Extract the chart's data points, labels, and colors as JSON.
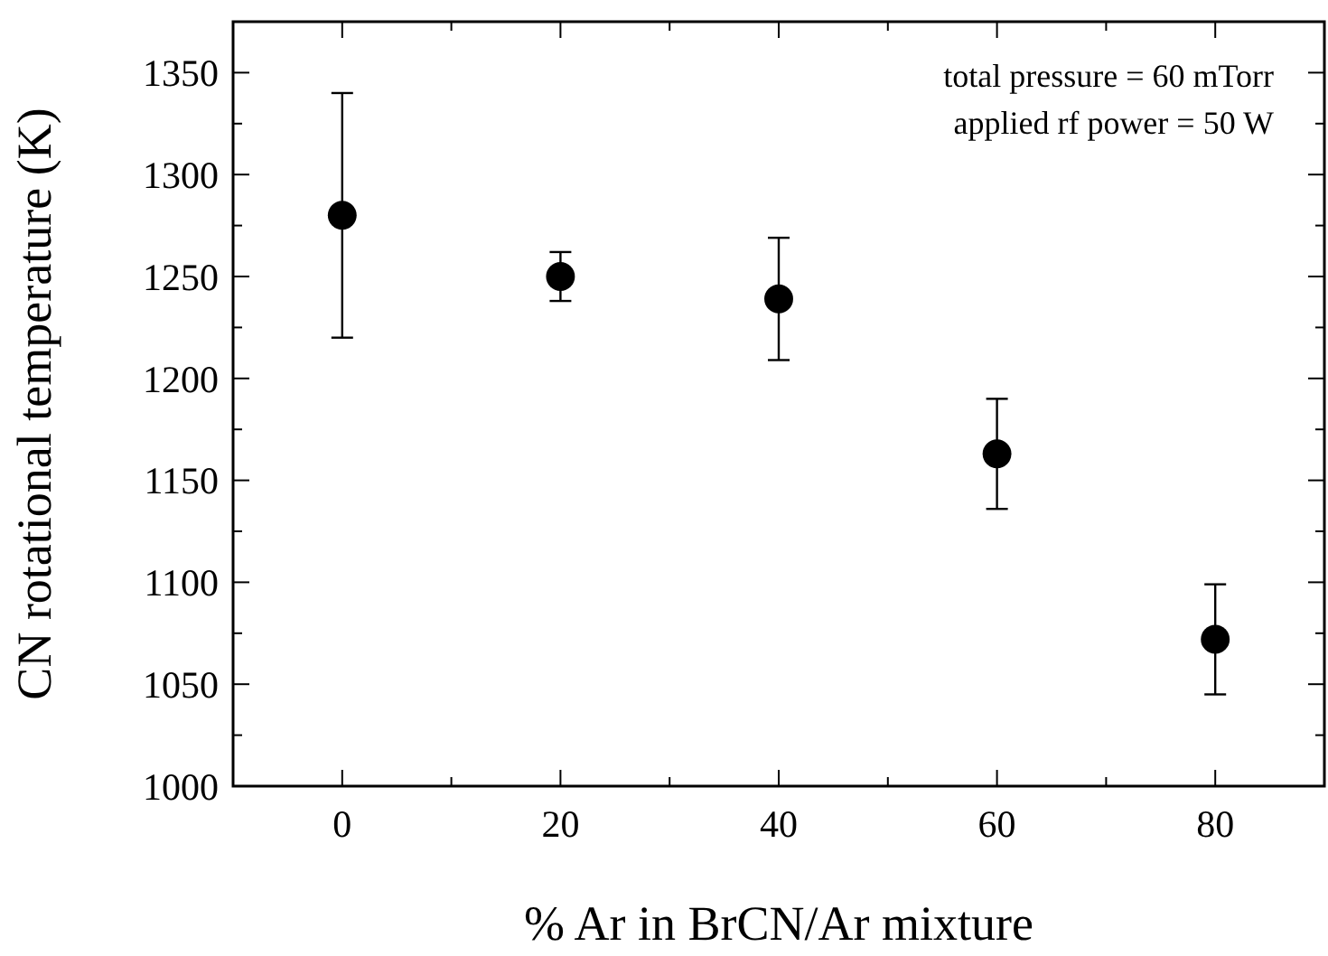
{
  "chart_data": {
    "type": "scatter",
    "xlabel": "% Ar in BrCN/Ar mixture",
    "ylabel": "CN rotational temperature (K)",
    "x": [
      0,
      20,
      40,
      60,
      80
    ],
    "series": [
      {
        "color": "#000000",
        "values": [
          1280,
          1250,
          1239,
          1163,
          1072
        ],
        "errors": [
          60,
          12,
          30,
          27,
          27
        ]
      }
    ],
    "xlim": [
      -10,
      90
    ],
    "xticks": [
      0,
      {
        "value": 10,
        "label": null
      },
      20,
      {
        "value": 30,
        "label": null
      },
      40,
      {
        "value": 50,
        "label": null
      },
      60,
      {
        "value": 70,
        "label": null
      },
      80
    ],
    "ylim": [
      1000,
      1375
    ],
    "yticks": [
      1000,
      {
        "value": 1025,
        "label": null
      },
      1050,
      {
        "value": 1075,
        "label": null
      },
      1100,
      {
        "value": 1125,
        "label": null
      },
      1150,
      {
        "value": 1175,
        "label": null
      },
      1200,
      {
        "value": 1225,
        "label": null
      },
      1250,
      {
        "value": 1275,
        "label": null
      },
      1300,
      {
        "value": 1325,
        "label": null
      },
      1350
    ],
    "marker": "circle",
    "grid": false,
    "annotations": [
      "total pressure = 60 mTorr",
      "applied rf power = 50 W"
    ]
  }
}
